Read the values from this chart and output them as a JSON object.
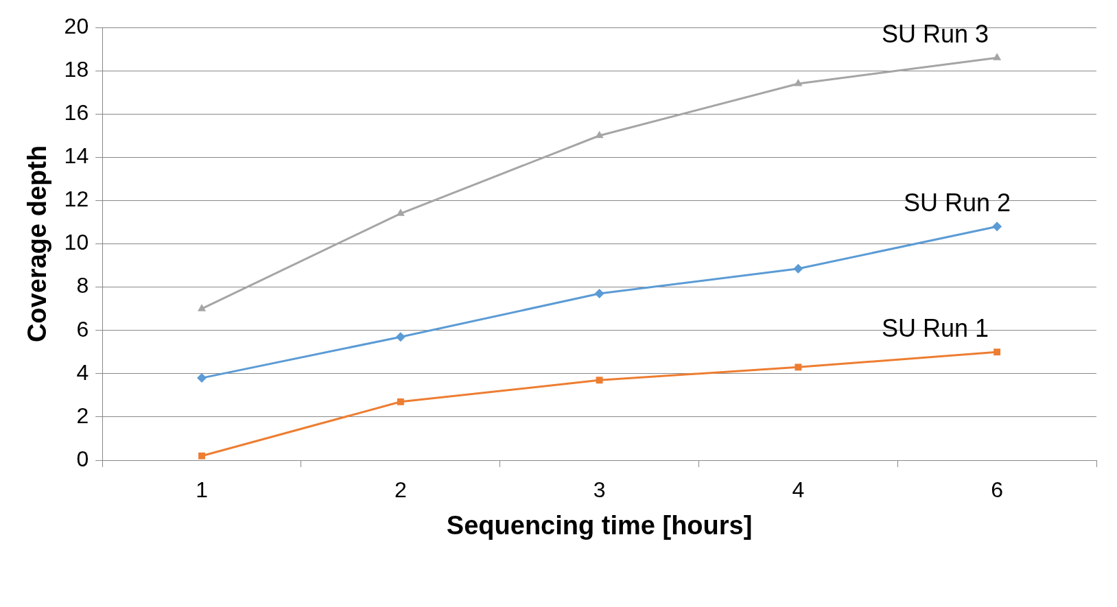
{
  "chart_data": {
    "type": "line",
    "xlabel": "Sequencing time [hours]",
    "ylabel": "Coverage depth",
    "categories": [
      "1",
      "2",
      "3",
      "4",
      "6"
    ],
    "series": [
      {
        "name": "SU Run 1",
        "color": "#ed7d31",
        "marker": "square",
        "values": [
          0.2,
          2.7,
          3.7,
          4.3,
          5.0
        ]
      },
      {
        "name": "SU Run 2",
        "color": "#5b9bd5",
        "marker": "diamond",
        "values": [
          3.8,
          5.7,
          7.7,
          8.85,
          10.8
        ]
      },
      {
        "name": "SU Run 3",
        "color": "#a5a5a5",
        "marker": "triangle",
        "values": [
          7.0,
          11.4,
          15.0,
          17.4,
          18.6
        ]
      }
    ],
    "ylim": [
      0,
      20
    ],
    "yticks": [
      0,
      2,
      4,
      6,
      8,
      10,
      12,
      14,
      16,
      18,
      20
    ],
    "grid": "y",
    "legend": false
  }
}
